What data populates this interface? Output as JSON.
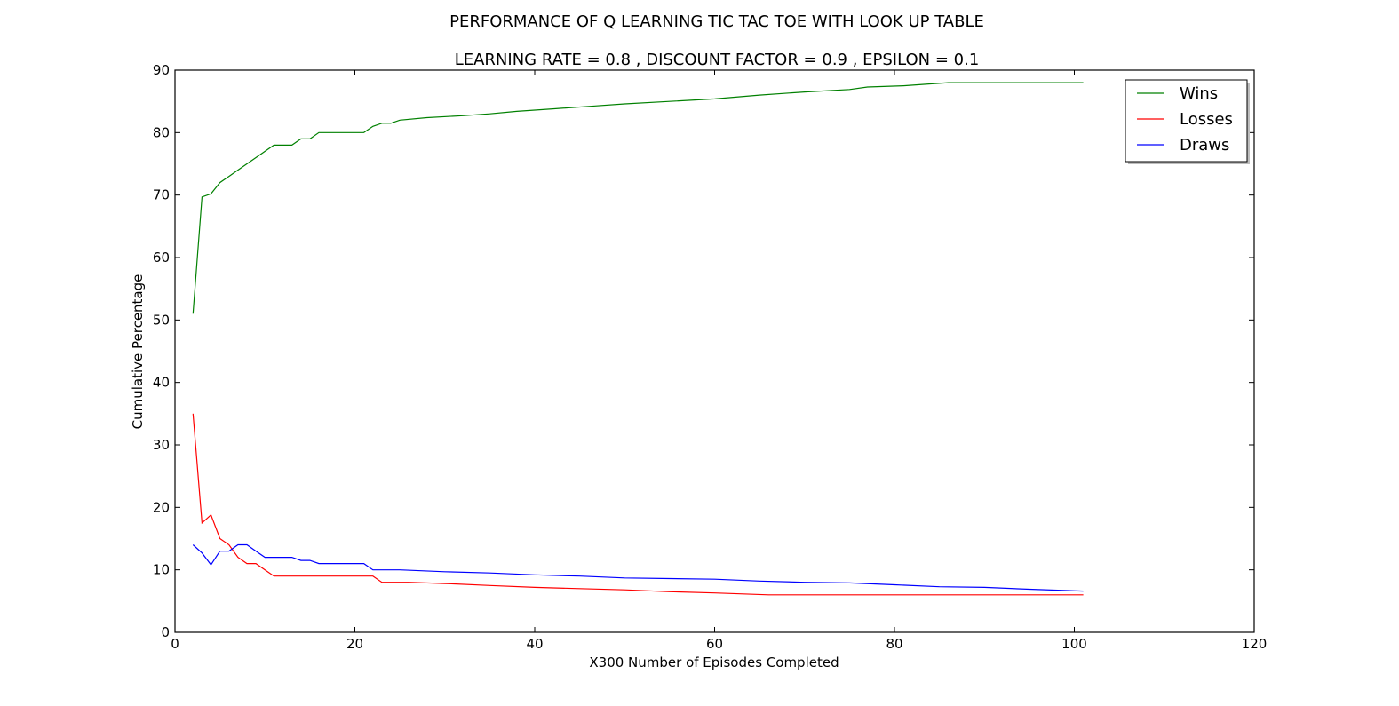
{
  "chart_data": {
    "type": "line",
    "title": "PERFORMANCE OF Q LEARNING TIC TAC TOE WITH LOOK UP TABLE",
    "subtitle": "LEARNING RATE =  0.8 , DISCOUNT FACTOR =  0.9 , EPSILON = 0.1",
    "xlabel": "X300 Number of Episodes Completed",
    "ylabel": "Cumulative Percentage",
    "xlim": [
      0,
      120
    ],
    "ylim": [
      0,
      90
    ],
    "xticks": [
      "0",
      "20",
      "40",
      "60",
      "80",
      "100",
      "120"
    ],
    "yticks": [
      "0",
      "10",
      "20",
      "30",
      "40",
      "50",
      "60",
      "70",
      "80",
      "90"
    ],
    "grid": false,
    "legend_position": "top-right",
    "series": [
      {
        "name": "Wins",
        "color": "#008000",
        "points": [
          [
            2,
            51
          ],
          [
            3,
            69.7
          ],
          [
            4,
            70.2
          ],
          [
            5,
            72
          ],
          [
            6,
            73
          ],
          [
            7,
            74
          ],
          [
            8,
            75
          ],
          [
            9,
            76
          ],
          [
            10,
            77
          ],
          [
            11,
            78
          ],
          [
            12,
            78
          ],
          [
            13,
            78
          ],
          [
            14,
            79
          ],
          [
            15,
            79
          ],
          [
            16,
            80
          ],
          [
            17,
            80
          ],
          [
            18,
            80
          ],
          [
            19,
            80
          ],
          [
            20,
            80
          ],
          [
            21,
            80
          ],
          [
            22,
            81
          ],
          [
            23,
            81.5
          ],
          [
            24,
            81.5
          ],
          [
            25,
            82
          ],
          [
            28,
            82.4
          ],
          [
            32,
            82.7
          ],
          [
            35,
            83
          ],
          [
            38,
            83.4
          ],
          [
            42,
            83.8
          ],
          [
            46,
            84.2
          ],
          [
            50,
            84.6
          ],
          [
            55,
            85
          ],
          [
            60,
            85.4
          ],
          [
            65,
            86
          ],
          [
            70,
            86.5
          ],
          [
            75,
            86.9
          ],
          [
            77,
            87.3
          ],
          [
            81,
            87.5
          ],
          [
            84,
            87.8
          ],
          [
            86,
            88
          ],
          [
            90,
            88
          ],
          [
            95,
            88
          ],
          [
            101,
            88
          ]
        ]
      },
      {
        "name": "Losses",
        "color": "#ff0000",
        "points": [
          [
            2,
            35
          ],
          [
            3,
            17.5
          ],
          [
            4,
            18.8
          ],
          [
            5,
            15
          ],
          [
            6,
            14
          ],
          [
            7,
            12
          ],
          [
            8,
            11
          ],
          [
            9,
            11
          ],
          [
            10,
            10
          ],
          [
            11,
            9
          ],
          [
            15,
            9
          ],
          [
            20,
            9
          ],
          [
            22,
            9
          ],
          [
            23,
            8
          ],
          [
            26,
            8
          ],
          [
            30,
            7.8
          ],
          [
            35,
            7.5
          ],
          [
            40,
            7.2
          ],
          [
            45,
            7
          ],
          [
            50,
            6.8
          ],
          [
            55,
            6.5
          ],
          [
            60,
            6.3
          ],
          [
            66,
            6
          ],
          [
            70,
            6
          ],
          [
            80,
            6
          ],
          [
            90,
            6
          ],
          [
            101,
            6
          ]
        ]
      },
      {
        "name": "Draws",
        "color": "#0000ff",
        "points": [
          [
            2,
            14
          ],
          [
            3,
            12.7
          ],
          [
            4,
            10.8
          ],
          [
            5,
            13
          ],
          [
            6,
            13
          ],
          [
            7,
            14
          ],
          [
            8,
            14
          ],
          [
            9,
            13
          ],
          [
            10,
            12
          ],
          [
            11,
            12
          ],
          [
            12,
            12
          ],
          [
            13,
            12
          ],
          [
            14,
            11.5
          ],
          [
            15,
            11.5
          ],
          [
            16,
            11
          ],
          [
            18,
            11
          ],
          [
            21,
            11
          ],
          [
            22,
            10
          ],
          [
            25,
            10
          ],
          [
            30,
            9.7
          ],
          [
            35,
            9.5
          ],
          [
            40,
            9.2
          ],
          [
            45,
            9
          ],
          [
            50,
            8.7
          ],
          [
            55,
            8.6
          ],
          [
            60,
            8.5
          ],
          [
            65,
            8.2
          ],
          [
            70,
            8
          ],
          [
            75,
            7.9
          ],
          [
            80,
            7.6
          ],
          [
            85,
            7.3
          ],
          [
            90,
            7.2
          ],
          [
            95,
            6.9
          ],
          [
            101,
            6.6
          ]
        ]
      }
    ]
  }
}
